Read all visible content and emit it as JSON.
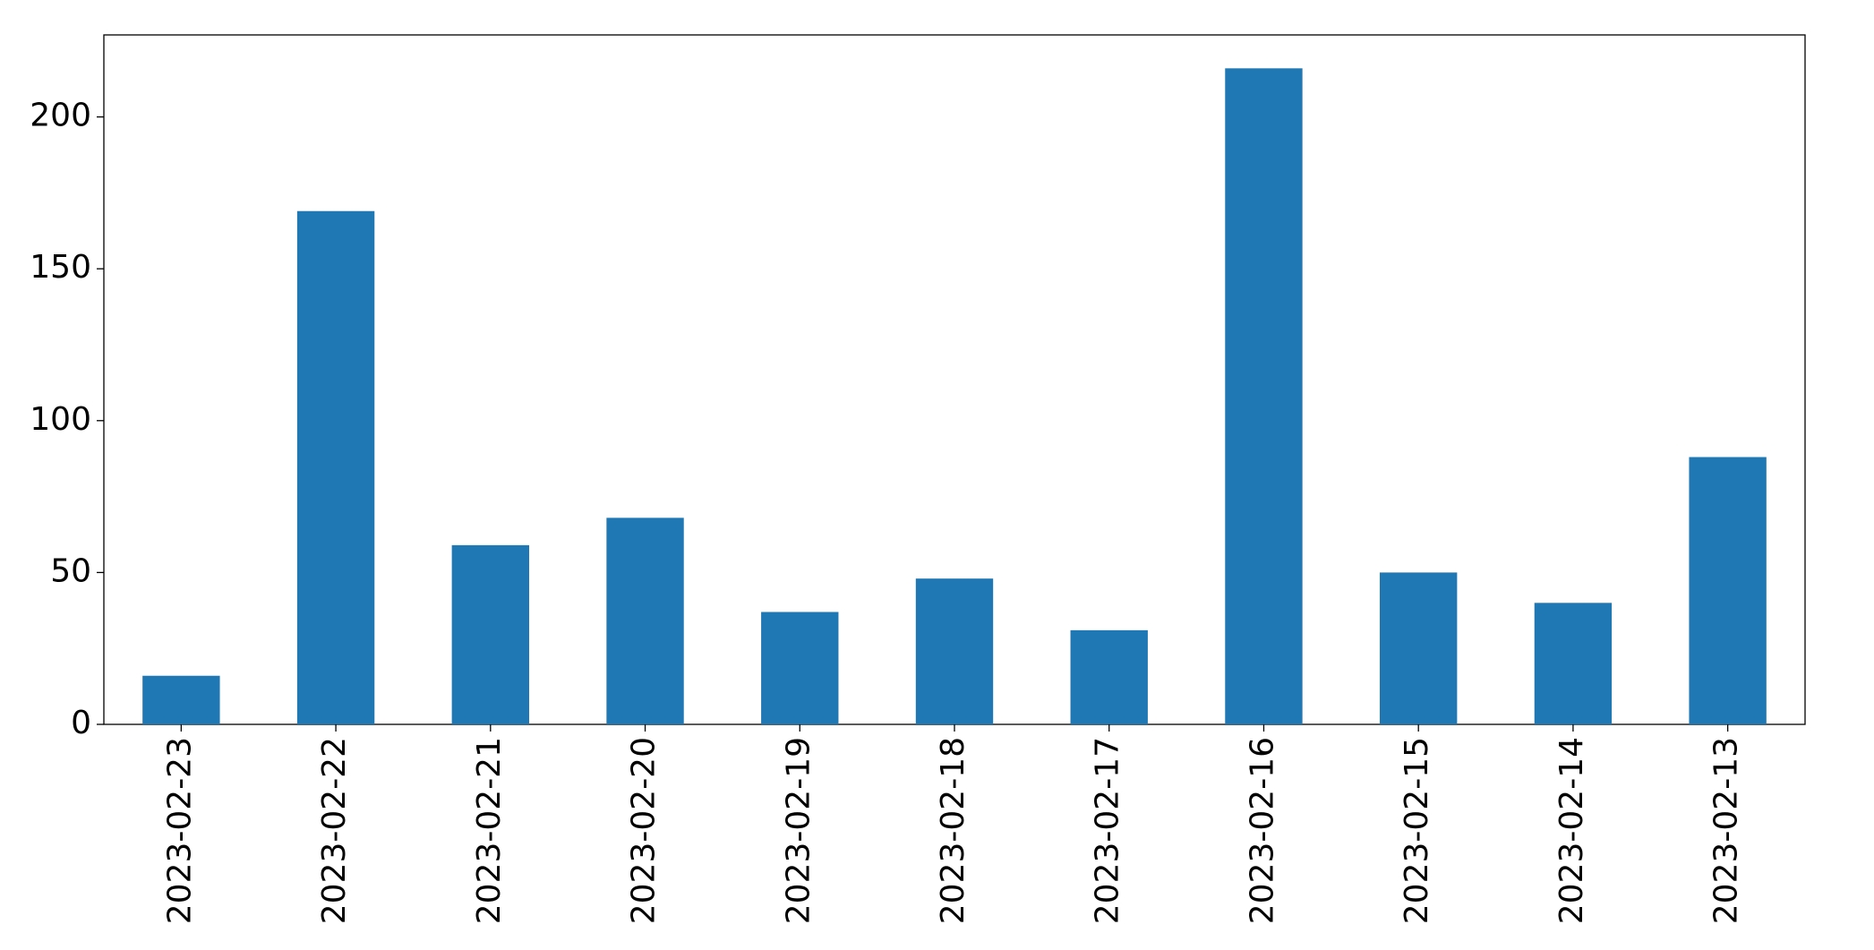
{
  "chart_data": {
    "type": "bar",
    "categories": [
      "2023-02-23",
      "2023-02-22",
      "2023-02-21",
      "2023-02-20",
      "2023-02-19",
      "2023-02-18",
      "2023-02-17",
      "2023-02-16",
      "2023-02-15",
      "2023-02-14",
      "2023-02-13"
    ],
    "values": [
      16,
      169,
      59,
      68,
      37,
      48,
      31,
      216,
      50,
      40,
      88
    ],
    "color": "#1f77b4",
    "ylim": [
      0,
      227
    ],
    "yticks": [
      0,
      50,
      100,
      150,
      200
    ],
    "grid": false
  }
}
